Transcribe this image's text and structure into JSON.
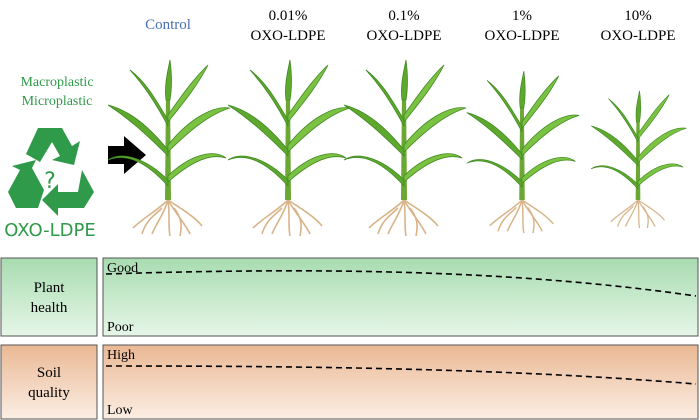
{
  "left": {
    "labels": [
      "Macroplastic",
      "Microplastic"
    ],
    "icon_symbol": "?",
    "material": "OXO-LDPE"
  },
  "columns": [
    {
      "dose": "Control"
    },
    {
      "dose": "0.01%",
      "material": "OXO-LDPE"
    },
    {
      "dose": "0.1%",
      "material": "OXO-LDPE"
    },
    {
      "dose": "1%",
      "material": "OXO-LDPE"
    },
    {
      "dose": "10%",
      "material": "OXO-LDPE"
    }
  ],
  "panels": [
    {
      "label_lines": [
        "Plant",
        "health"
      ],
      "top": "Good",
      "bottom": "Poor"
    },
    {
      "label_lines": [
        "Soil",
        "quality"
      ],
      "top": "High",
      "bottom": "Low"
    }
  ]
}
